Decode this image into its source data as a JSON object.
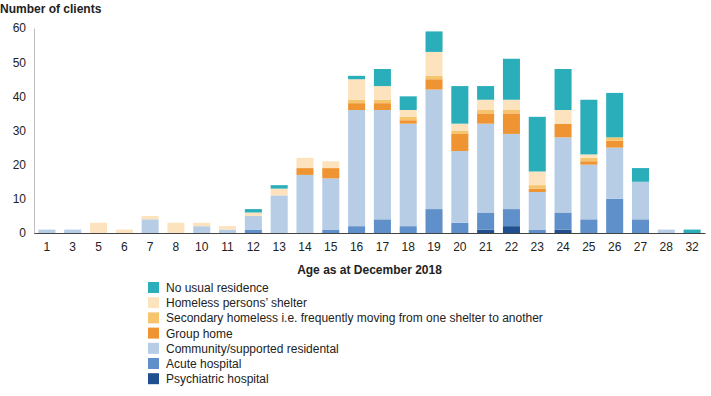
{
  "chart_data": {
    "type": "bar",
    "y_label": "Number of clients",
    "x_label": "Age as at December 2018",
    "categories": [
      "1",
      "3",
      "5",
      "6",
      "7",
      "8",
      "10",
      "11",
      "12",
      "13",
      "14",
      "15",
      "16",
      "17",
      "18",
      "19",
      "20",
      "21",
      "22",
      "23",
      "24",
      "25",
      "26",
      "27",
      "28",
      "32"
    ],
    "series": [
      {
        "name": "No usual residence",
        "color": "#2aaeb9",
        "values": [
          0,
          0,
          0,
          0,
          0,
          0,
          0,
          0,
          1,
          1,
          0,
          0,
          1,
          5,
          4,
          6,
          11,
          4,
          12,
          16,
          12,
          16,
          13,
          4,
          0,
          1
        ]
      },
      {
        "name": "Homeless persons’ shelter",
        "color": "#fde3bd",
        "values": [
          0,
          0,
          3,
          1,
          1,
          3,
          1,
          1,
          1,
          2,
          3,
          2,
          6,
          4,
          2,
          7,
          2,
          3,
          3,
          4,
          4,
          1,
          0,
          0,
          0,
          0
        ]
      },
      {
        "name": "Secondary homeless i.e. frequently moving from one shelter to another",
        "color": "#f7c46e",
        "values": [
          0,
          0,
          0,
          0,
          0,
          0,
          0,
          0,
          0,
          0,
          0,
          0,
          1,
          1,
          1,
          1,
          1,
          1,
          1,
          1,
          0,
          1,
          1,
          0,
          0,
          0
        ]
      },
      {
        "name": "Group home",
        "color": "#ef9433",
        "values": [
          0,
          0,
          0,
          0,
          0,
          0,
          0,
          0,
          0,
          0,
          2,
          3,
          2,
          2,
          1,
          3,
          5,
          3,
          6,
          1,
          4,
          1,
          2,
          0,
          0,
          0
        ]
      },
      {
        "name": "Community/supported residental",
        "color": "#b7cde6",
        "values": [
          1,
          1,
          0,
          0,
          4,
          0,
          2,
          1,
          4,
          11,
          17,
          15,
          34,
          32,
          30,
          35,
          21,
          26,
          22,
          11,
          22,
          16,
          15,
          11,
          1,
          0
        ]
      },
      {
        "name": "Acute hospital",
        "color": "#5f90c9",
        "values": [
          0,
          0,
          0,
          0,
          0,
          0,
          0,
          0,
          1,
          0,
          0,
          1,
          2,
          4,
          2,
          7,
          3,
          5,
          5,
          1,
          5,
          4,
          10,
          4,
          0,
          0
        ]
      },
      {
        "name": "Psychiatric hospital",
        "color": "#1f4f8e",
        "values": [
          0,
          0,
          0,
          0,
          0,
          0,
          0,
          0,
          0,
          0,
          0,
          0,
          0,
          0,
          0,
          0,
          0,
          1,
          2,
          0,
          1,
          0,
          0,
          0,
          0,
          0
        ]
      }
    ],
    "ylim": [
      0,
      60
    ],
    "yticks": [
      0,
      10,
      20,
      30,
      40,
      50,
      60
    ],
    "stacked": true,
    "grid": false,
    "legend": "bottom"
  }
}
